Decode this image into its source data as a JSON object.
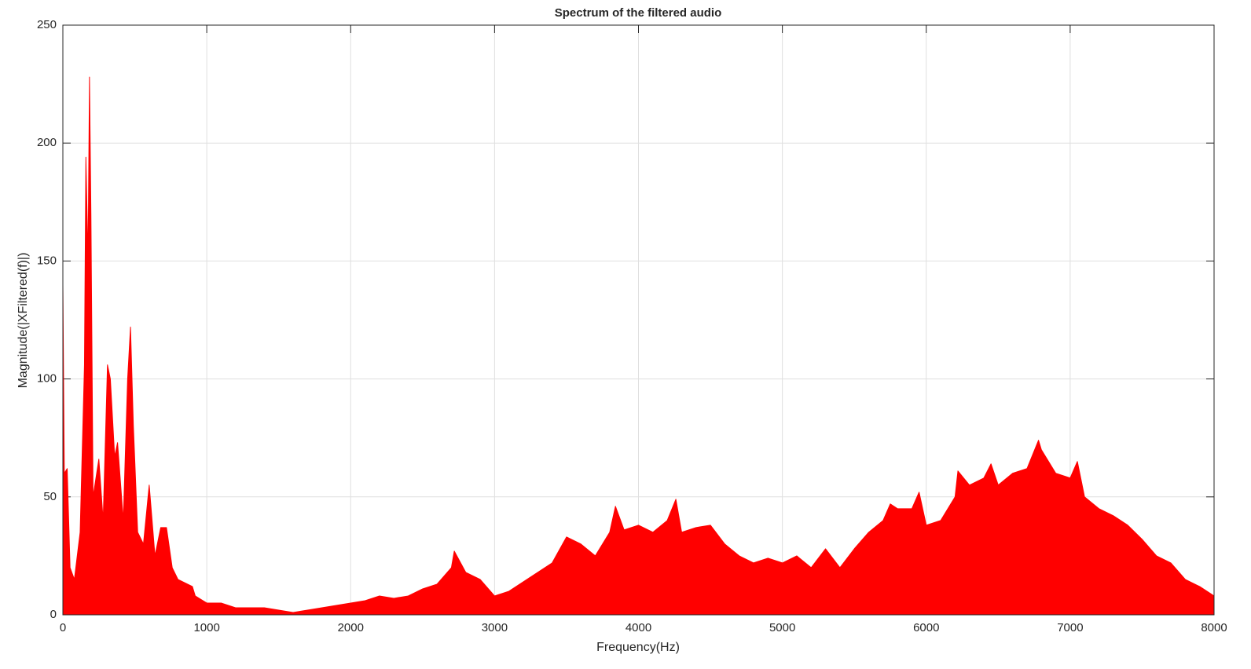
{
  "chart_data": {
    "type": "area",
    "title": "Spectrum of the filtered audio",
    "x_label": "Frequency(Hz)",
    "y_label": "Magnitude(|XFiltered(f)|)",
    "color": "#ff0000",
    "grid": true,
    "xlim": [
      0,
      8000
    ],
    "xticks": [
      0,
      1000,
      2000,
      3000,
      4000,
      5000,
      6000,
      7000,
      8000
    ],
    "ylim": [
      0,
      250
    ],
    "yticks": [
      0,
      50,
      100,
      150,
      200,
      250
    ],
    "x": [
      0,
      10,
      30,
      50,
      80,
      120,
      150,
      160,
      175,
      185,
      195,
      210,
      250,
      280,
      310,
      330,
      360,
      380,
      420,
      450,
      470,
      490,
      520,
      560,
      600,
      640,
      680,
      720,
      760,
      800,
      900,
      920,
      1000,
      1100,
      1200,
      1300,
      1400,
      1500,
      1600,
      1700,
      1800,
      1900,
      2000,
      2100,
      2200,
      2300,
      2400,
      2500,
      2600,
      2700,
      2720,
      2800,
      2900,
      3000,
      3100,
      3200,
      3300,
      3400,
      3500,
      3600,
      3700,
      3800,
      3840,
      3900,
      4000,
      4100,
      4200,
      4260,
      4300,
      4400,
      4500,
      4600,
      4700,
      4800,
      4900,
      5000,
      5100,
      5200,
      5300,
      5400,
      5500,
      5600,
      5700,
      5750,
      5800,
      5900,
      5950,
      6000,
      6100,
      6200,
      6220,
      6300,
      6400,
      6450,
      6500,
      6600,
      6700,
      6780,
      6800,
      6900,
      7000,
      7050,
      7100,
      7200,
      7300,
      7400,
      7500,
      7600,
      7700,
      7800,
      7900,
      8000
    ],
    "values": [
      140,
      60,
      62,
      20,
      15,
      35,
      106,
      194,
      150,
      228,
      170,
      50,
      66,
      40,
      106,
      100,
      67,
      73,
      40,
      100,
      122,
      80,
      35,
      30,
      55,
      25,
      37,
      37,
      20,
      15,
      12,
      8,
      5,
      5,
      3,
      3,
      3,
      2,
      1,
      2,
      3,
      4,
      5,
      6,
      8,
      7,
      8,
      11,
      13,
      20,
      27,
      18,
      15,
      8,
      10,
      14,
      18,
      22,
      33,
      30,
      25,
      35,
      46,
      36,
      38,
      35,
      40,
      49,
      35,
      37,
      38,
      30,
      25,
      22,
      24,
      22,
      25,
      20,
      28,
      20,
      28,
      35,
      40,
      47,
      45,
      45,
      52,
      38,
      40,
      50,
      61,
      55,
      58,
      64,
      55,
      60,
      62,
      74,
      70,
      60,
      58,
      65,
      50,
      45,
      42,
      38,
      32,
      25,
      22,
      15,
      12,
      8
    ]
  }
}
